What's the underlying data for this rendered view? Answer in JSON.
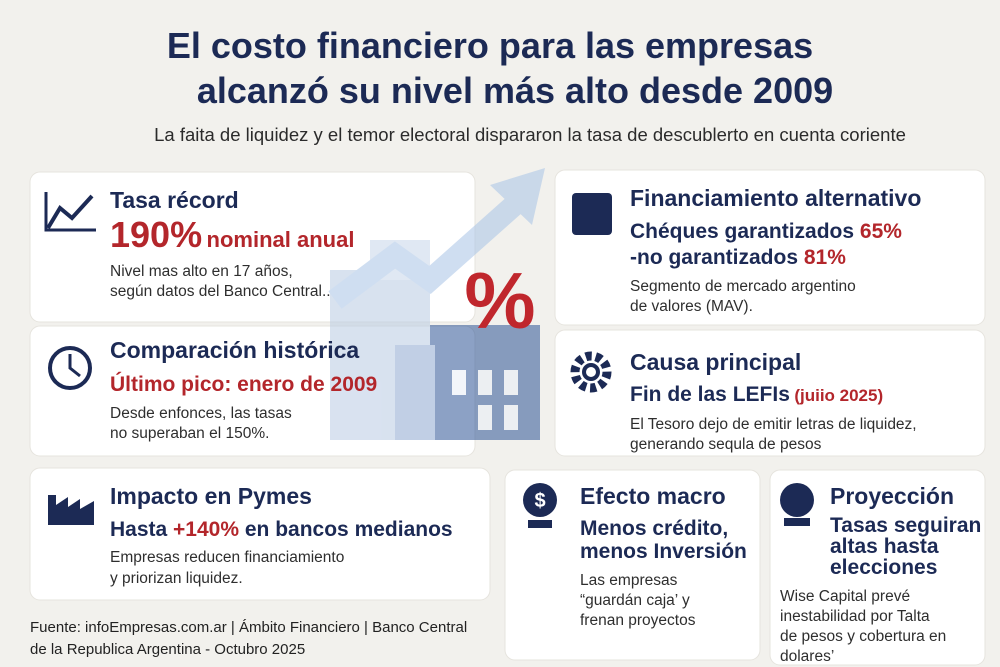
{
  "header": {
    "title_lines": [
      "El costo financiero para las empresas",
      "alcanzó su nivel más alto desde 2009"
    ],
    "subtitle": "La faita de liquidez y el temor electoral dispararon la tasa de descublerto en cuenta coriente"
  },
  "illustration": {
    "symbol": "%"
  },
  "cards": [
    {
      "title": "Tasa récord",
      "highlight": [
        "190%",
        "nominal anual"
      ],
      "body": [
        "Nivel mas alto en 17 años,",
        "según datos del Banco Central.."
      ]
    },
    {
      "title": "Comparación histórica",
      "highlight": [
        "Último pico: enero de 2009"
      ],
      "body": [
        "Desde enfonces, las tasas",
        "no superaban el 150%."
      ]
    },
    {
      "title": "Financiamiento alternativo",
      "highlight": [
        "Chéques garantizados",
        "65%",
        "-no garantizados",
        "81%"
      ],
      "body": [
        "Segmento de mercado argentino",
        "de valores (MAV)."
      ]
    },
    {
      "title": "Causa principal",
      "highlight": [
        "Fin de las LEFIs",
        "(juiio 2025)"
      ],
      "body": [
        "El Tesoro dejo de emitir letras de liquidez,",
        "generando sequla de pesos"
      ]
    },
    {
      "title": "Impacto en Pymes",
      "highlight": [
        "Hasta",
        "+140%",
        "en bancos medianos"
      ],
      "body": [
        "Empresas reducen financiamiento",
        "y priorizan liquidez."
      ]
    },
    {
      "title": "Efecto macro",
      "highlight": [
        "Menos crédito,",
        "menos Inversión"
      ],
      "body": [
        "Las empresas",
        "“guardán caja’ y",
        "frenan proyectos"
      ]
    },
    {
      "title": "Proyección",
      "highlight": [
        "Tasas seguiran",
        "altas hasta",
        "elecciones"
      ],
      "body": [
        "Wise Capital prevé",
        "inestabilidad por Talta",
        "de pesos y cobertura en",
        "dolares’"
      ]
    }
  ],
  "footer": [
    "Fuente: infoEmpresas.com.ar | Ámbito Financiero | Banco Central",
    "de la Republica Argentina - Octubro 2025"
  ]
}
